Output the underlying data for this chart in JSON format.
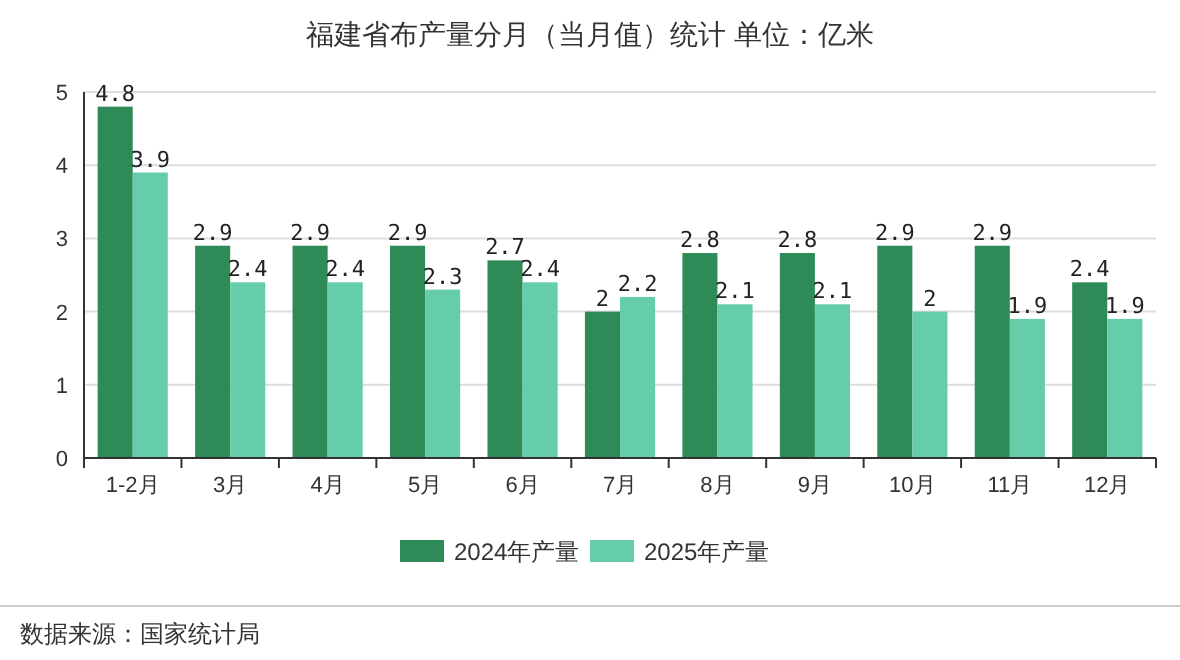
{
  "chart_data": {
    "type": "bar",
    "title": "福建省布产量分月（当月值）统计 单位：亿米",
    "categories": [
      "1-2月",
      "3月",
      "4月",
      "5月",
      "6月",
      "7月",
      "8月",
      "9月",
      "10月",
      "11月",
      "12月"
    ],
    "series": [
      {
        "name": "2024年产量",
        "color": "#2e8b57",
        "values": [
          4.8,
          2.9,
          2.9,
          2.9,
          2.7,
          2,
          2.8,
          2.8,
          2.9,
          2.9,
          2.4
        ]
      },
      {
        "name": "2025年产量",
        "color": "#66cdaa",
        "values": [
          3.9,
          2.4,
          2.4,
          2.3,
          2.4,
          2.2,
          2.1,
          2.1,
          2,
          1.9,
          1.9
        ]
      }
    ],
    "ylim": [
      0,
      5
    ],
    "yticks": [
      0,
      1,
      2,
      3,
      4,
      5
    ],
    "grid": "y",
    "legend": "bottom",
    "data_labels": true,
    "annotations": [
      "数据来源：国家统计局"
    ]
  }
}
